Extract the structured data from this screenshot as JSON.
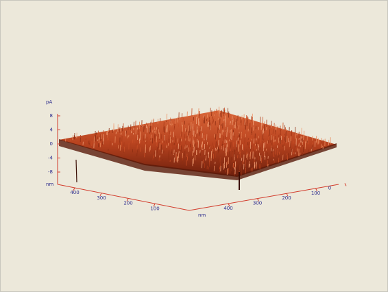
{
  "plot": {
    "z_axis": {
      "unit": "pA",
      "ticks": [
        "8",
        "4",
        "0",
        "-4",
        "-8"
      ]
    },
    "x_axis": {
      "unit": "nm",
      "ticks": [
        "400",
        "300",
        "200",
        "100"
      ]
    },
    "y_axis": {
      "unit": "nm",
      "ticks": [
        "400",
        "300",
        "200",
        "100",
        "0"
      ]
    }
  }
}
